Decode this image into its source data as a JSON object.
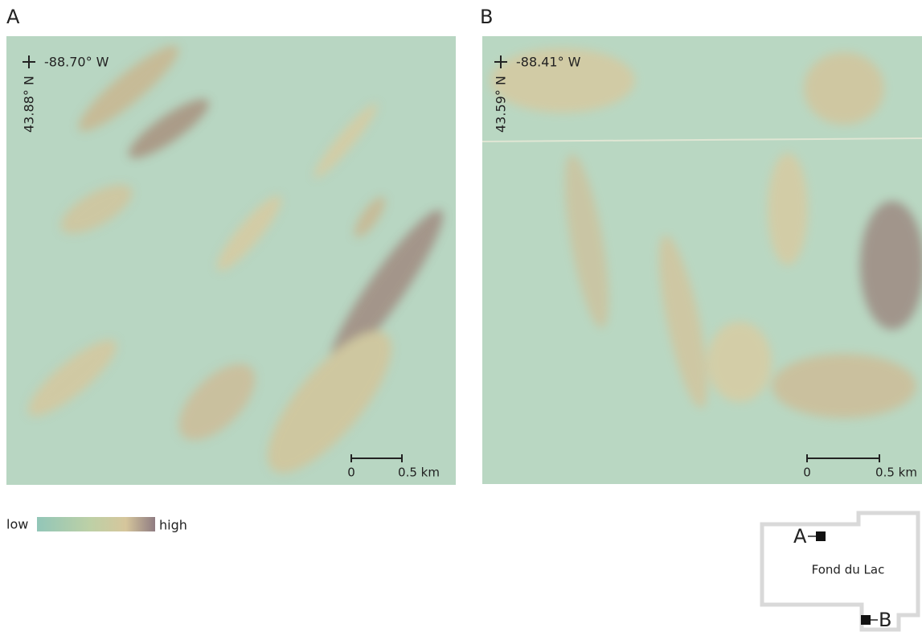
{
  "panels": [
    {
      "label": "A",
      "longitude": "-88.70° W",
      "latitude": "43.88° N",
      "scale_bar": {
        "start": "0",
        "end": "0.5 km"
      }
    },
    {
      "label": "B",
      "longitude": "-88.41° W",
      "latitude": "43.59° N",
      "scale_bar": {
        "start": "0",
        "end": "0.5 km"
      }
    }
  ],
  "legend": {
    "low": "low",
    "high": "high"
  },
  "inset": {
    "county": "Fond du Lac",
    "markers": [
      "A",
      "B"
    ]
  }
}
